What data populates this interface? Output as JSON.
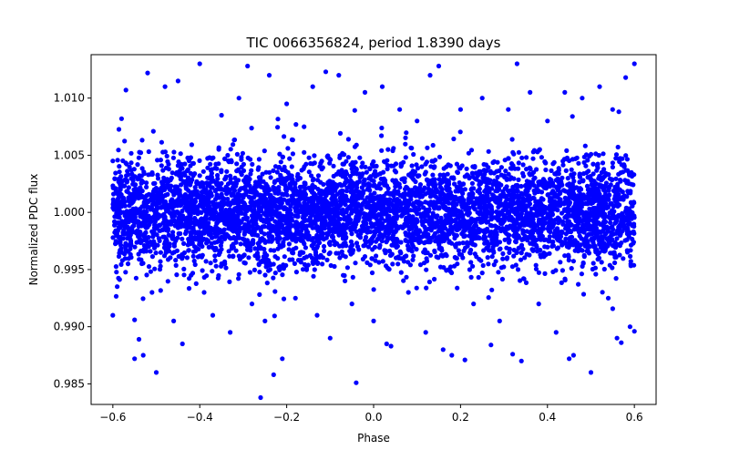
{
  "chart_data": {
    "type": "scatter",
    "title": "TIC 0066356824, period 1.8390 days",
    "xlabel": "Phase",
    "ylabel": "Normalized PDC flux",
    "xlim": [
      -0.65,
      0.65
    ],
    "ylim": [
      0.9832,
      1.0138
    ],
    "x_ticks": [
      -0.6,
      -0.4,
      -0.2,
      0.0,
      0.2,
      0.4,
      0.6
    ],
    "x_tick_labels": [
      "−0.6",
      "−0.4",
      "−0.2",
      "0.0",
      "0.2",
      "0.4",
      "0.6"
    ],
    "y_ticks": [
      0.985,
      0.99,
      0.995,
      1.0,
      1.005,
      1.01
    ],
    "y_tick_labels": [
      "0.985",
      "0.990",
      "0.995",
      "1.000",
      "1.005",
      "1.010"
    ],
    "grid": false,
    "legend": "none",
    "marker_color": "#0000ff",
    "series": [
      {
        "points": [
          [
            -0.6,
            1.0045
          ],
          [
            -0.6,
            0.991
          ],
          [
            -0.59,
            0.9935
          ],
          [
            -0.58,
            1.0082
          ],
          [
            -0.58,
            0.9965
          ],
          [
            -0.57,
            1.0107
          ],
          [
            -0.56,
            0.9968
          ],
          [
            -0.55,
            0.9906
          ],
          [
            -0.55,
            0.9872
          ],
          [
            -0.54,
            0.9889
          ],
          [
            -0.53,
            0.9875
          ],
          [
            -0.52,
            1.0122
          ],
          [
            -0.51,
            0.993
          ],
          [
            -0.5,
            0.986
          ],
          [
            -0.48,
            1.011
          ],
          [
            -0.46,
            0.9905
          ],
          [
            -0.45,
            1.0115
          ],
          [
            -0.44,
            0.9885
          ],
          [
            -0.42,
            0.9945
          ],
          [
            -0.4,
            1.013
          ],
          [
            -0.39,
            0.993
          ],
          [
            -0.37,
            0.991
          ],
          [
            -0.35,
            1.0085
          ],
          [
            -0.33,
            0.9895
          ],
          [
            -0.31,
            1.01
          ],
          [
            -0.29,
            1.0128
          ],
          [
            -0.28,
            0.992
          ],
          [
            -0.26,
            0.9838
          ],
          [
            -0.25,
            0.9905
          ],
          [
            -0.24,
            1.012
          ],
          [
            -0.23,
            0.9858
          ],
          [
            -0.21,
            0.9872
          ],
          [
            -0.2,
            1.0095
          ],
          [
            -0.18,
            0.9925
          ],
          [
            -0.16,
            1.0075
          ],
          [
            -0.14,
            1.011
          ],
          [
            -0.13,
            0.991
          ],
          [
            -0.11,
            1.0123
          ],
          [
            -0.1,
            0.989
          ],
          [
            -0.08,
            1.012
          ],
          [
            -0.07,
            0.9945
          ],
          [
            -0.05,
            0.992
          ],
          [
            -0.04,
            0.9851
          ],
          [
            -0.02,
            1.0105
          ],
          [
            0.0,
            0.9905
          ],
          [
            0.02,
            1.011
          ],
          [
            0.03,
            0.9885
          ],
          [
            0.04,
            0.9883
          ],
          [
            0.06,
            1.009
          ],
          [
            0.08,
            0.993
          ],
          [
            0.1,
            1.008
          ],
          [
            0.12,
            0.9895
          ],
          [
            0.13,
            1.012
          ],
          [
            0.15,
            1.0128
          ],
          [
            0.16,
            0.988
          ],
          [
            0.18,
            0.9875
          ],
          [
            0.2,
            1.009
          ],
          [
            0.21,
            0.9871
          ],
          [
            0.23,
            0.992
          ],
          [
            0.25,
            1.01
          ],
          [
            0.27,
            0.9884
          ],
          [
            0.29,
            0.9905
          ],
          [
            0.31,
            1.009
          ],
          [
            0.32,
            0.9876
          ],
          [
            0.33,
            1.013
          ],
          [
            0.34,
            0.987
          ],
          [
            0.36,
            1.0105
          ],
          [
            0.38,
            0.992
          ],
          [
            0.4,
            1.008
          ],
          [
            0.42,
            0.9895
          ],
          [
            0.44,
            1.0105
          ],
          [
            0.45,
            0.9872
          ],
          [
            0.46,
            0.9875
          ],
          [
            0.48,
            1.01
          ],
          [
            0.5,
            0.986
          ],
          [
            0.52,
            1.011
          ],
          [
            0.54,
            0.9925
          ],
          [
            0.55,
            1.009
          ],
          [
            0.56,
            0.989
          ],
          [
            0.57,
            0.9886
          ],
          [
            0.58,
            1.0118
          ],
          [
            0.59,
            0.99
          ],
          [
            0.6,
            1.013
          ],
          [
            0.6,
            0.9896
          ]
        ]
      }
    ],
    "dense_band": {
      "x_range": [
        -0.6,
        0.6
      ],
      "y_center": 1.0,
      "y_std": 0.0024
    }
  }
}
